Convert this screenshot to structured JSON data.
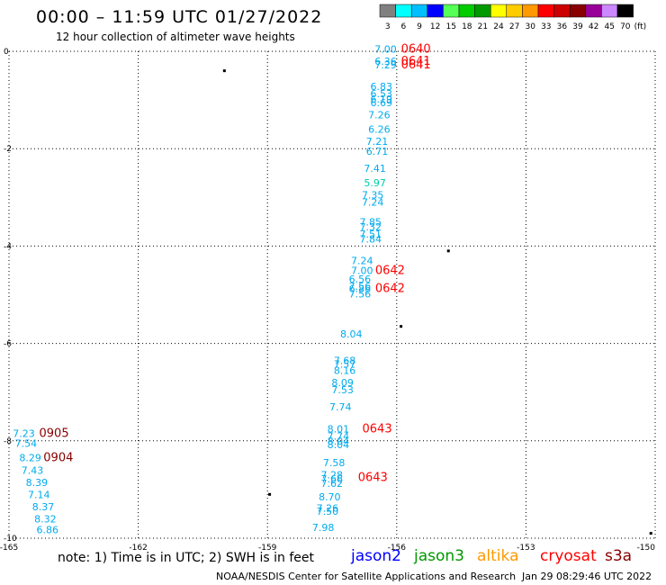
{
  "header": {
    "title": "00:00 – 11:59 UTC 01/27/2022",
    "subtitle": "12 hour collection of altimeter wave heights"
  },
  "colorbar": {
    "labels": [
      "3",
      "6",
      "9",
      "12",
      "15",
      "18",
      "21",
      "24",
      "27",
      "30",
      "33",
      "36",
      "39",
      "42",
      "45",
      "70"
    ],
    "unit": "(ft)",
    "colors": [
      "#808080",
      "#00ffff",
      "#00bfff",
      "#0000ff",
      "#55ff55",
      "#00cc00",
      "#009900",
      "#ffff00",
      "#ffcc00",
      "#ff9900",
      "#ff0000",
      "#cc0000",
      "#880000",
      "#990099",
      "#cc88ff",
      "#000000"
    ]
  },
  "footer": {
    "note": "note:  1) Time is in UTC;  2) SWH is in feet",
    "credit": "NOAA/NESDIS Center for Satellite Applications and Research",
    "timestamp": "Jan 29 08:29:46 UTC 2022"
  },
  "sources": [
    {
      "name": "jason2",
      "color": "#0000ff"
    },
    {
      "name": "jason3",
      "color": "#009900"
    },
    {
      "name": "altika",
      "color": "#ff9900"
    },
    {
      "name": "cryosat",
      "color": "#ff0000"
    },
    {
      "name": "s3a",
      "color": "#880000"
    }
  ],
  "chart_data": {
    "type": "scatter",
    "xlim": [
      -165,
      -150
    ],
    "ylim": [
      -10,
      0
    ],
    "x_ticks": [
      -165,
      -162,
      -159,
      -156,
      -153,
      -150
    ],
    "y_ticks": [
      0,
      -2,
      -4,
      -6,
      -8,
      -10
    ],
    "grid": true,
    "swh_points": [
      {
        "lon": -156.0,
        "lat": 0.05,
        "v": "7.00",
        "color": "#00aaee"
      },
      {
        "lon": -156.0,
        "lat": -0.2,
        "v": "6.36",
        "color": "#00aaee"
      },
      {
        "lon": -156.0,
        "lat": -0.28,
        "v": "7.29",
        "color": "#00aaee"
      },
      {
        "lon": -156.1,
        "lat": -0.72,
        "v": "6.83",
        "color": "#00aaee"
      },
      {
        "lon": -156.1,
        "lat": -0.87,
        "v": "6.53",
        "color": "#00aaee"
      },
      {
        "lon": -156.1,
        "lat": -0.98,
        "v": "6.19",
        "color": "#00aaee"
      },
      {
        "lon": -156.1,
        "lat": -1.05,
        "v": "6.69",
        "color": "#00aaee"
      },
      {
        "lon": -156.15,
        "lat": -1.3,
        "v": "7.26",
        "color": "#00aaee"
      },
      {
        "lon": -156.15,
        "lat": -1.6,
        "v": "6.26",
        "color": "#00aaee"
      },
      {
        "lon": -156.2,
        "lat": -1.85,
        "v": "7.21",
        "color": "#00aaee"
      },
      {
        "lon": -156.2,
        "lat": -2.05,
        "v": "6.71",
        "color": "#00aaee"
      },
      {
        "lon": -156.25,
        "lat": -2.4,
        "v": "7.41",
        "color": "#00aaee"
      },
      {
        "lon": -156.25,
        "lat": -2.7,
        "v": "5.97",
        "color": "#00ccaa"
      },
      {
        "lon": -156.3,
        "lat": -2.95,
        "v": "7.35",
        "color": "#00aaee"
      },
      {
        "lon": -156.3,
        "lat": -3.1,
        "v": "7.24",
        "color": "#00aaee"
      },
      {
        "lon": -156.35,
        "lat": -3.5,
        "v": "7.85",
        "color": "#00aaee"
      },
      {
        "lon": -156.35,
        "lat": -3.6,
        "v": "7.32",
        "color": "#00aaee"
      },
      {
        "lon": -156.35,
        "lat": -3.75,
        "v": "7.51",
        "color": "#00aaee"
      },
      {
        "lon": -156.35,
        "lat": -3.85,
        "v": "7.84",
        "color": "#00aaee"
      },
      {
        "lon": -156.55,
        "lat": -4.3,
        "v": "7.24",
        "color": "#00aaee"
      },
      {
        "lon": -156.55,
        "lat": -4.5,
        "v": "7.00",
        "color": "#00aaee"
      },
      {
        "lon": -156.6,
        "lat": -4.68,
        "v": "6.56",
        "color": "#00aaee"
      },
      {
        "lon": -156.6,
        "lat": -4.82,
        "v": "7.56",
        "color": "#00aaee"
      },
      {
        "lon": -156.6,
        "lat": -4.87,
        "v": "6.86",
        "color": "#00aaee"
      },
      {
        "lon": -156.6,
        "lat": -4.98,
        "v": "7.56",
        "color": "#00aaee"
      },
      {
        "lon": -156.8,
        "lat": -5.8,
        "v": "8.04",
        "color": "#00aaee"
      },
      {
        "lon": -156.95,
        "lat": -6.35,
        "v": "7.68",
        "color": "#00aaee"
      },
      {
        "lon": -156.95,
        "lat": -6.42,
        "v": "7.57",
        "color": "#00aaee"
      },
      {
        "lon": -156.95,
        "lat": -6.55,
        "v": "8.16",
        "color": "#00aaee"
      },
      {
        "lon": -157.0,
        "lat": -6.8,
        "v": "8.09",
        "color": "#00aaee"
      },
      {
        "lon": -157.0,
        "lat": -6.95,
        "v": "7.53",
        "color": "#00aaee"
      },
      {
        "lon": -157.05,
        "lat": -7.3,
        "v": "7.74",
        "color": "#00aaee"
      },
      {
        "lon": -157.1,
        "lat": -7.75,
        "v": "8.01",
        "color": "#00aaee"
      },
      {
        "lon": -157.1,
        "lat": -7.9,
        "v": "7.74",
        "color": "#00aaee"
      },
      {
        "lon": -157.1,
        "lat": -8.0,
        "v": "8.04",
        "color": "#00aaee"
      },
      {
        "lon": -157.1,
        "lat": -8.08,
        "v": "8.04",
        "color": "#00aaee"
      },
      {
        "lon": -157.2,
        "lat": -8.45,
        "v": "7.58",
        "color": "#00aaee"
      },
      {
        "lon": -157.25,
        "lat": -8.7,
        "v": "7.28",
        "color": "#00aaee"
      },
      {
        "lon": -157.25,
        "lat": -8.78,
        "v": "7.66",
        "color": "#00aaee"
      },
      {
        "lon": -157.25,
        "lat": -8.87,
        "v": "7.62",
        "color": "#00aaee"
      },
      {
        "lon": -157.3,
        "lat": -9.15,
        "v": "8.70",
        "color": "#00aaee"
      },
      {
        "lon": -157.35,
        "lat": -9.38,
        "v": "7.26",
        "color": "#00aaee"
      },
      {
        "lon": -157.35,
        "lat": -9.45,
        "v": "7.50",
        "color": "#00aaee"
      },
      {
        "lon": -157.45,
        "lat": -9.78,
        "v": "7.98",
        "color": "#00aaee"
      },
      {
        "lon": -164.4,
        "lat": -7.85,
        "v": "7.23",
        "color": "#00aaee"
      },
      {
        "lon": -164.35,
        "lat": -8.05,
        "v": "7.54",
        "color": "#00aaee"
      },
      {
        "lon": -164.25,
        "lat": -8.35,
        "v": "8.29",
        "color": "#00aaee"
      },
      {
        "lon": -164.2,
        "lat": -8.6,
        "v": "7.43",
        "color": "#00aaee"
      },
      {
        "lon": -164.1,
        "lat": -8.85,
        "v": "8.39",
        "color": "#00aaee"
      },
      {
        "lon": -164.05,
        "lat": -9.1,
        "v": "7.14",
        "color": "#00aaee"
      },
      {
        "lon": -163.95,
        "lat": -9.35,
        "v": "8.37",
        "color": "#00aaee"
      },
      {
        "lon": -163.9,
        "lat": -9.6,
        "v": "8.32",
        "color": "#00aaee"
      },
      {
        "lon": -163.85,
        "lat": -9.82,
        "v": "6.86",
        "color": "#00aaee"
      }
    ],
    "time_labels": [
      {
        "lon": -155.9,
        "lat": 0.05,
        "t": "0640",
        "color": "#ff0000"
      },
      {
        "lon": -155.9,
        "lat": -0.2,
        "t": "0641",
        "color": "#ff0000"
      },
      {
        "lon": -155.9,
        "lat": -0.28,
        "t": "0641",
        "color": "#ff0000"
      },
      {
        "lon": -156.5,
        "lat": -4.5,
        "t": "0642",
        "color": "#ff0000"
      },
      {
        "lon": -156.5,
        "lat": -4.87,
        "t": "0642",
        "color": "#ff0000"
      },
      {
        "lon": -156.8,
        "lat": -7.75,
        "t": "0643",
        "color": "#ff0000"
      },
      {
        "lon": -156.9,
        "lat": -8.75,
        "t": "0643",
        "color": "#ff0000"
      },
      {
        "lon": -164.3,
        "lat": -7.85,
        "t": "0905",
        "color": "#880000"
      },
      {
        "lon": -164.2,
        "lat": -8.35,
        "t": "0904",
        "color": "#880000"
      }
    ],
    "land_marks": [
      {
        "lon": -160.0,
        "lat": -0.4
      },
      {
        "lon": -154.8,
        "lat": -4.1
      },
      {
        "lon": -155.9,
        "lat": -5.65
      },
      {
        "lon": -158.95,
        "lat": -9.1
      },
      {
        "lon": -150.1,
        "lat": -9.9
      }
    ]
  }
}
